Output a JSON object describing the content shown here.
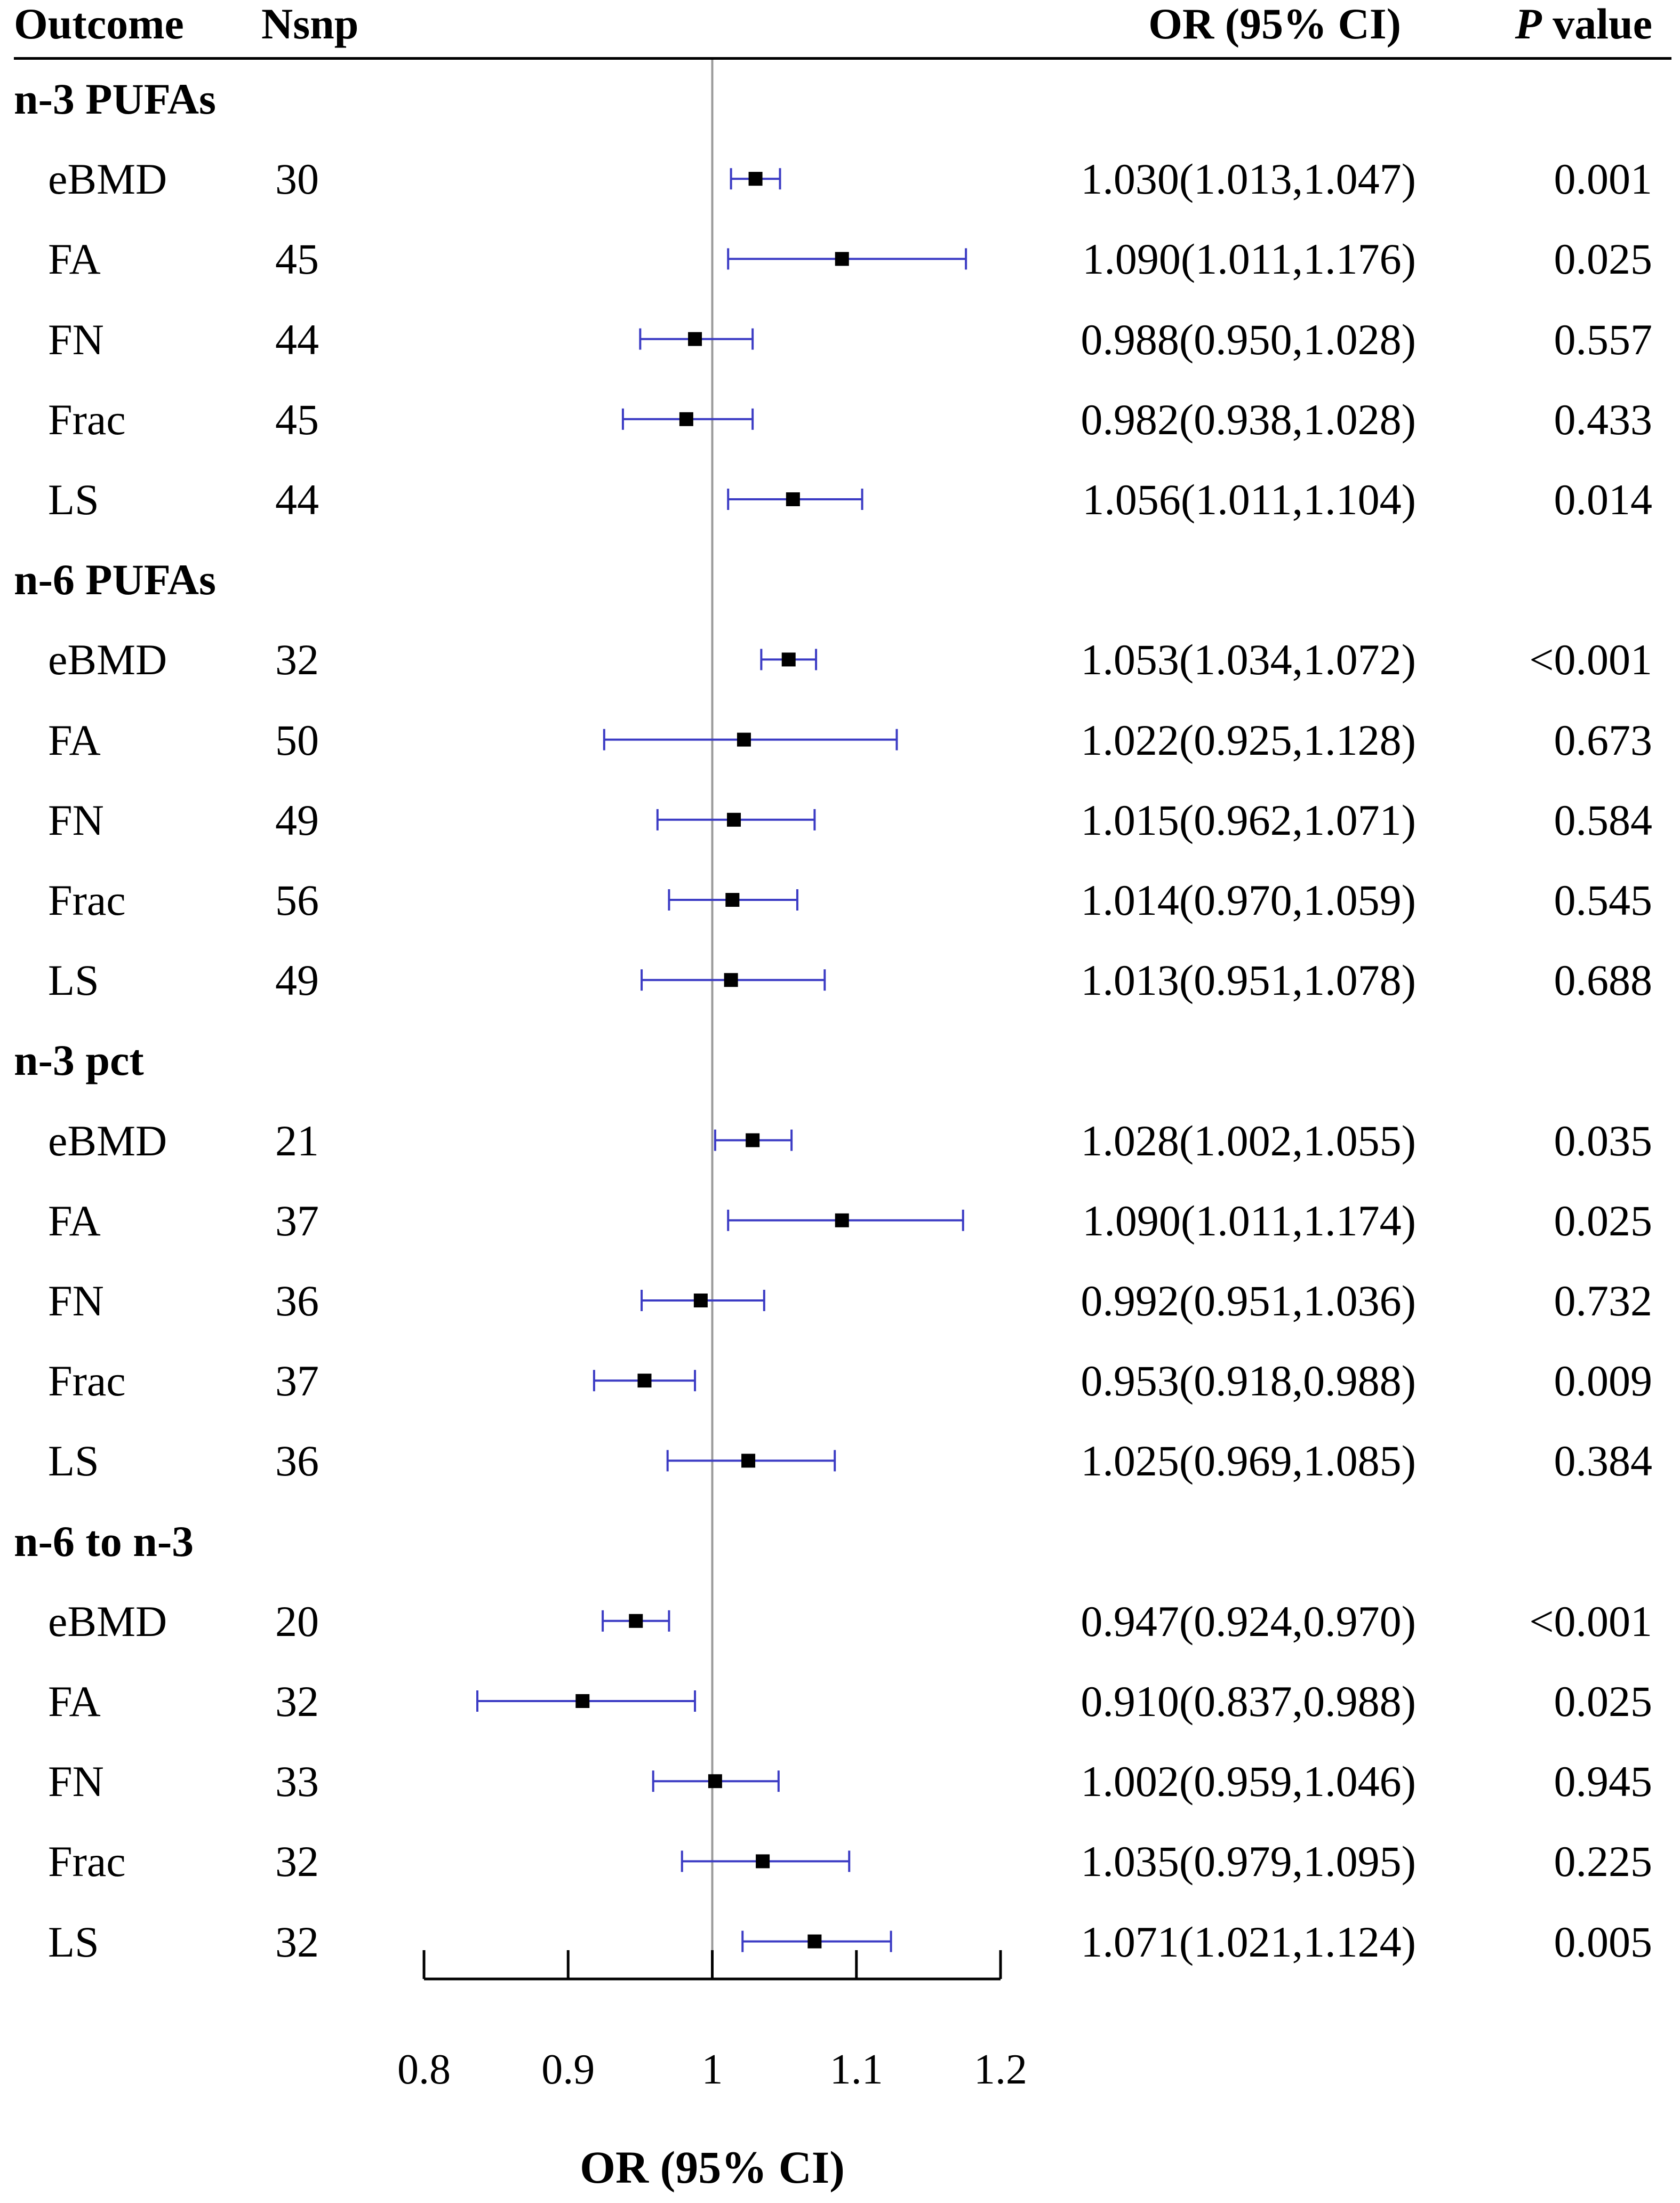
{
  "header": {
    "outcome": "Outcome",
    "nsnp": "Nsnp",
    "or_ci": "OR (95% CI)",
    "p_italic": "P",
    "p_rest": " value"
  },
  "chart_data": {
    "type": "forest",
    "xlabel": "OR (95% CI)",
    "xlim": [
      0.8,
      1.2
    ],
    "ticks": [
      0.8,
      0.9,
      1,
      1.1,
      1.2
    ],
    "tick_labels": [
      "0.8",
      "0.9",
      "1",
      "1.1",
      "1.2"
    ],
    "reference_line": 1,
    "colors": {
      "ci_line": "#3b3bc4",
      "point": "#000000",
      "ref_line": "#9a9a9a"
    },
    "groups": [
      {
        "name": "n-3 PUFAs",
        "rows": [
          {
            "outcome": "eBMD",
            "nsnp": "30",
            "or": 1.03,
            "lo": 1.013,
            "hi": 1.047,
            "or_ci": "1.030(1.013,1.047)",
            "p": "0.001"
          },
          {
            "outcome": "FA",
            "nsnp": "45",
            "or": 1.09,
            "lo": 1.011,
            "hi": 1.176,
            "or_ci": "1.090(1.011,1.176)",
            "p": "0.025"
          },
          {
            "outcome": "FN",
            "nsnp": "44",
            "or": 0.988,
            "lo": 0.95,
            "hi": 1.028,
            "or_ci": "0.988(0.950,1.028)",
            "p": "0.557"
          },
          {
            "outcome": "Frac",
            "nsnp": "45",
            "or": 0.982,
            "lo": 0.938,
            "hi": 1.028,
            "or_ci": "0.982(0.938,1.028)",
            "p": "0.433"
          },
          {
            "outcome": "LS",
            "nsnp": "44",
            "or": 1.056,
            "lo": 1.011,
            "hi": 1.104,
            "or_ci": "1.056(1.011,1.104)",
            "p": "0.014"
          }
        ]
      },
      {
        "name": "n-6 PUFAs",
        "rows": [
          {
            "outcome": "eBMD",
            "nsnp": "32",
            "or": 1.053,
            "lo": 1.034,
            "hi": 1.072,
            "or_ci": "1.053(1.034,1.072)",
            "p": "<0.001"
          },
          {
            "outcome": "FA",
            "nsnp": "50",
            "or": 1.022,
            "lo": 0.925,
            "hi": 1.128,
            "or_ci": "1.022(0.925,1.128)",
            "p": "0.673"
          },
          {
            "outcome": "FN",
            "nsnp": "49",
            "or": 1.015,
            "lo": 0.962,
            "hi": 1.071,
            "or_ci": "1.015(0.962,1.071)",
            "p": "0.584"
          },
          {
            "outcome": "Frac",
            "nsnp": "56",
            "or": 1.014,
            "lo": 0.97,
            "hi": 1.059,
            "or_ci": "1.014(0.970,1.059)",
            "p": "0.545"
          },
          {
            "outcome": "LS",
            "nsnp": "49",
            "or": 1.013,
            "lo": 0.951,
            "hi": 1.078,
            "or_ci": "1.013(0.951,1.078)",
            "p": "0.688"
          }
        ]
      },
      {
        "name": "n-3 pct",
        "rows": [
          {
            "outcome": "eBMD",
            "nsnp": "21",
            "or": 1.028,
            "lo": 1.002,
            "hi": 1.055,
            "or_ci": "1.028(1.002,1.055)",
            "p": "0.035"
          },
          {
            "outcome": "FA",
            "nsnp": "37",
            "or": 1.09,
            "lo": 1.011,
            "hi": 1.174,
            "or_ci": "1.090(1.011,1.174)",
            "p": "0.025"
          },
          {
            "outcome": "FN",
            "nsnp": "36",
            "or": 0.992,
            "lo": 0.951,
            "hi": 1.036,
            "or_ci": "0.992(0.951,1.036)",
            "p": "0.732"
          },
          {
            "outcome": "Frac",
            "nsnp": "37",
            "or": 0.953,
            "lo": 0.918,
            "hi": 0.988,
            "or_ci": "0.953(0.918,0.988)",
            "p": "0.009"
          },
          {
            "outcome": "LS",
            "nsnp": "36",
            "or": 1.025,
            "lo": 0.969,
            "hi": 1.085,
            "or_ci": "1.025(0.969,1.085)",
            "p": "0.384"
          }
        ]
      },
      {
        "name": "n-6 to n-3",
        "rows": [
          {
            "outcome": "eBMD",
            "nsnp": "20",
            "or": 0.947,
            "lo": 0.924,
            "hi": 0.97,
            "or_ci": "0.947(0.924,0.970)",
            "p": "<0.001"
          },
          {
            "outcome": "FA",
            "nsnp": "32",
            "or": 0.91,
            "lo": 0.837,
            "hi": 0.988,
            "or_ci": "0.910(0.837,0.988)",
            "p": "0.025"
          },
          {
            "outcome": "FN",
            "nsnp": "33",
            "or": 1.002,
            "lo": 0.959,
            "hi": 1.046,
            "or_ci": "1.002(0.959,1.046)",
            "p": "0.945"
          },
          {
            "outcome": "Frac",
            "nsnp": "32",
            "or": 1.035,
            "lo": 0.979,
            "hi": 1.095,
            "or_ci": "1.035(0.979,1.095)",
            "p": "0.225"
          },
          {
            "outcome": "LS",
            "nsnp": "32",
            "or": 1.071,
            "lo": 1.021,
            "hi": 1.124,
            "or_ci": "1.071(1.021,1.124)",
            "p": "0.005"
          }
        ]
      }
    ]
  }
}
